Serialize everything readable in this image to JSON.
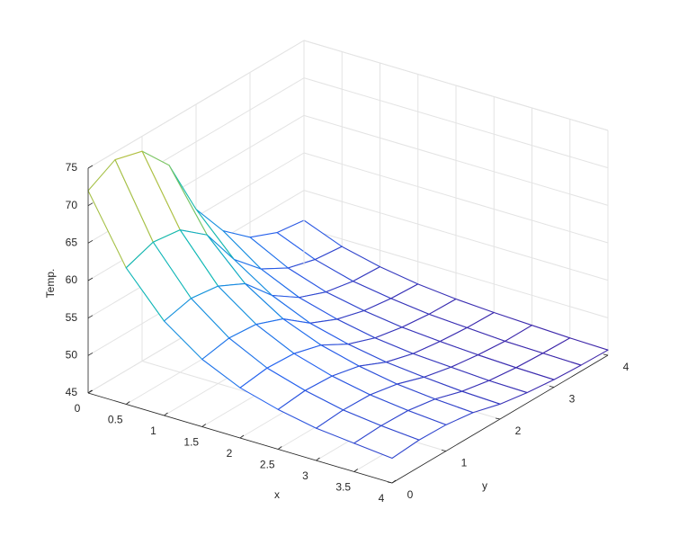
{
  "chart_data": {
    "type": "mesh",
    "xlabel": "x",
    "ylabel": "y",
    "zlabel": "Temp.",
    "x": [
      0,
      0.5,
      1,
      1.5,
      2,
      2.5,
      3,
      3.5,
      4
    ],
    "y": [
      0,
      0.5,
      1,
      1.5,
      2,
      2.5,
      3,
      3.5,
      4
    ],
    "z": [
      [
        72,
        63.2,
        57.6,
        54.0,
        51.7,
        50.3,
        49.3,
        48.8,
        48.3
      ],
      [
        74,
        64.5,
        58.5,
        54.7,
        52.2,
        50.7,
        49.6,
        49.0,
        48.6
      ],
      [
        73,
        64.0,
        58.0,
        54.4,
        52.0,
        50.5,
        49.5,
        48.9,
        48.5
      ],
      [
        69,
        61.2,
        56.2,
        53.0,
        51.0,
        49.7,
        48.8,
        48.3,
        48.0
      ],
      [
        61,
        55.8,
        52.5,
        50.3,
        49.0,
        48.1,
        47.6,
        47.2,
        47.0
      ],
      [
        56,
        52.4,
        50.1,
        48.7,
        47.7,
        47.1,
        46.8,
        46.5,
        46.4
      ],
      [
        53,
        50.4,
        48.7,
        47.7,
        47.0,
        46.6,
        46.3,
        46.1,
        46.0
      ],
      [
        51.5,
        49.4,
        48.0,
        47.2,
        46.6,
        46.3,
        46.0,
        45.9,
        45.8
      ],
      [
        51,
        49.0,
        47.8,
        47.0,
        46.5,
        46.2,
        46.0,
        45.8,
        45.7
      ]
    ],
    "xlim": [
      0,
      4
    ],
    "ylim": [
      0,
      4
    ],
    "zlim": [
      45,
      75
    ],
    "xticks": [
      0,
      0.5,
      1,
      1.5,
      2,
      2.5,
      3,
      3.5,
      4
    ],
    "yticks": [
      0,
      1,
      2,
      3,
      4
    ],
    "zticks": [
      45,
      50,
      55,
      60,
      65,
      70,
      75
    ],
    "grid": true,
    "colormap": "parula"
  }
}
